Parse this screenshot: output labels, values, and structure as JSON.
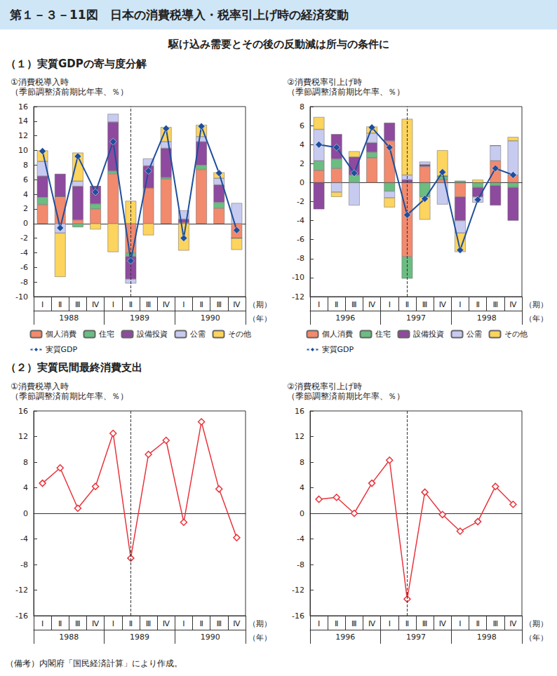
{
  "header": {
    "figure_title": "第１－３－11図　日本の消費税導入・税率引上げ時の経済変動",
    "subtitle": "駆け込み需要とその後の反動減は所与の条件に",
    "sections": [
      "（１）実質GDPの寄与度分解",
      "（２）実質民間最終消費支出"
    ],
    "note": "（備考）内閣府「国民経済計算」により作成。"
  },
  "chart_data": [
    {
      "type": "bar",
      "title": "①消費税導入時",
      "ylabel": "（季節調整済前期比年率、％）",
      "xlabel": "（期）",
      "categories": [
        "Ⅰ",
        "Ⅱ",
        "Ⅲ",
        "Ⅳ",
        "Ⅰ",
        "Ⅱ",
        "Ⅲ",
        "Ⅳ",
        "Ⅰ",
        "Ⅱ",
        "Ⅲ",
        "Ⅳ"
      ],
      "category_groups": [
        "1988",
        "1989",
        "1990"
      ],
      "group_label": "（年）",
      "event_index": 5,
      "stacked": true,
      "grid": false,
      "legend": "bottom",
      "ylim": [
        -10,
        16
      ],
      "yticks": [
        -10,
        -8,
        -6,
        -4,
        -2,
        0,
        2,
        4,
        6,
        8,
        10,
        12,
        14,
        16
      ],
      "series": [
        {
          "name": "個人消費",
          "type": "bar",
          "color": "#f28a6e",
          "values": [
            2.6,
            3.7,
            0.5,
            2.0,
            6.8,
            -4.0,
            4.9,
            6.1,
            0.2,
            7.4,
            2.1,
            -2.0
          ]
        },
        {
          "name": "住宅",
          "type": "bar",
          "color": "#6bbd82",
          "values": [
            1.0,
            0,
            -0.5,
            0.7,
            0.4,
            -0.5,
            0,
            0.2,
            0,
            0.6,
            0.8,
            0
          ]
        },
        {
          "name": "設備投資",
          "type": "bar",
          "color": "#8e4a9e",
          "values": [
            2.9,
            3.1,
            4.6,
            2.4,
            6.7,
            -3.1,
            3.0,
            4.0,
            0.4,
            3.2,
            2.4,
            0
          ]
        },
        {
          "name": "公需",
          "type": "bar",
          "color": "#c8cbf0",
          "values": [
            2.0,
            -1.3,
            0.7,
            0,
            1.1,
            -0.6,
            1.0,
            0.9,
            1.2,
            0.7,
            0.9,
            2.8
          ]
        },
        {
          "name": "その他",
          "type": "bar",
          "color": "#fcd45e",
          "values": [
            1.5,
            -6.0,
            3.9,
            -0.8,
            -3.9,
            3.1,
            -1.6,
            2.0,
            -3.7,
            1.6,
            0.8,
            -1.6
          ]
        },
        {
          "name": "実質GDP",
          "type": "line",
          "color": "#1f4e9c",
          "marker": "diamond",
          "values": [
            9.9,
            -0.6,
            9.2,
            4.3,
            11.2,
            -5.1,
            7.2,
            13.0,
            -2.0,
            13.3,
            6.9,
            -0.9
          ]
        }
      ]
    },
    {
      "type": "bar",
      "title": "②消費税率引上げ時",
      "ylabel": "（季節調整済前期比年率、％）",
      "xlabel": "（期）",
      "categories": [
        "Ⅰ",
        "Ⅱ",
        "Ⅲ",
        "Ⅳ",
        "Ⅰ",
        "Ⅱ",
        "Ⅲ",
        "Ⅳ",
        "Ⅰ",
        "Ⅱ",
        "Ⅲ",
        "Ⅳ"
      ],
      "category_groups": [
        "1996",
        "1997",
        "1998"
      ],
      "group_label": "（年）",
      "event_index": 5,
      "stacked": true,
      "grid": false,
      "legend": "bottom",
      "ylim": [
        -12,
        8
      ],
      "yticks": [
        -12,
        -10,
        -8,
        -6,
        -4,
        -2,
        0,
        2,
        4,
        6,
        8
      ],
      "series": [
        {
          "name": "個人消費",
          "type": "bar",
          "color": "#f28a6e",
          "values": [
            1.3,
            1.5,
            0,
            2.6,
            4.4,
            -7.8,
            1.7,
            0.3,
            -1.5,
            0,
            2.3,
            0.8
          ]
        },
        {
          "name": "住宅",
          "type": "bar",
          "color": "#6bbd82",
          "values": [
            1.0,
            1.0,
            0.8,
            0.6,
            -0.9,
            -2.3,
            -1.5,
            0.4,
            0.2,
            -0.5,
            -0.3,
            -0.5
          ]
        },
        {
          "name": "設備投資",
          "type": "bar",
          "color": "#8e4a9e",
          "values": [
            -2.8,
            2.6,
            1.9,
            1.0,
            1.9,
            0.3,
            0.2,
            0,
            -2.5,
            -1.0,
            -2.1,
            -3.5
          ]
        },
        {
          "name": "公需",
          "type": "bar",
          "color": "#c8cbf0",
          "values": [
            3.3,
            -1.0,
            -2.4,
            1.0,
            -0.7,
            0.5,
            0.3,
            -2.3,
            -1.3,
            -0.6,
            1.6,
            3.6
          ]
        },
        {
          "name": "その他",
          "type": "bar",
          "color": "#fcd45e",
          "values": [
            1.3,
            -0.5,
            0.6,
            0.7,
            -1.0,
            5.9,
            -2.4,
            2.7,
            -2.0,
            0.3,
            0,
            0.4
          ]
        },
        {
          "name": "実質GDP",
          "type": "line",
          "color": "#1f4e9c",
          "marker": "diamond",
          "values": [
            4.0,
            3.7,
            1.0,
            5.8,
            3.7,
            -3.4,
            -1.7,
            1.1,
            -7.1,
            -1.8,
            1.5,
            0.8
          ]
        }
      ]
    },
    {
      "type": "line",
      "title": "①消費税導入時",
      "ylabel": "（季節調整済前期比年率、％）",
      "xlabel": "（期）",
      "categories": [
        "Ⅰ",
        "Ⅱ",
        "Ⅲ",
        "Ⅳ",
        "Ⅰ",
        "Ⅱ",
        "Ⅲ",
        "Ⅳ",
        "Ⅰ",
        "Ⅱ",
        "Ⅲ",
        "Ⅳ"
      ],
      "category_groups": [
        "1988",
        "1989",
        "1990"
      ],
      "group_label": "（年）",
      "event_index": 5,
      "grid": false,
      "color": "#e8343c",
      "marker": "diamond",
      "ylim": [
        -16,
        16
      ],
      "yticks": [
        -16,
        -12,
        -8,
        -4,
        0,
        4,
        8,
        12,
        16
      ],
      "values": [
        4.7,
        7.1,
        0.8,
        4.2,
        12.5,
        -7.0,
        9.2,
        11.4,
        -1.4,
        14.3,
        3.8,
        -3.8
      ]
    },
    {
      "type": "line",
      "title": "②消費税率引上げ時",
      "ylabel": "（季節調整済前期比年率、％）",
      "xlabel": "（期）",
      "categories": [
        "Ⅰ",
        "Ⅱ",
        "Ⅲ",
        "Ⅳ",
        "Ⅰ",
        "Ⅱ",
        "Ⅲ",
        "Ⅳ",
        "Ⅰ",
        "Ⅱ",
        "Ⅲ",
        "Ⅳ"
      ],
      "category_groups": [
        "1996",
        "1997",
        "1998"
      ],
      "group_label": "（年）",
      "event_index": 5,
      "grid": false,
      "color": "#e8343c",
      "marker": "diamond",
      "ylim": [
        -16,
        16
      ],
      "yticks": [
        -16,
        -12,
        -8,
        -4,
        0,
        4,
        8,
        12,
        16
      ],
      "values": [
        2.2,
        2.5,
        0.0,
        4.7,
        8.3,
        -13.4,
        3.3,
        -0.2,
        -2.8,
        -1.3,
        4.2,
        1.4
      ]
    }
  ]
}
